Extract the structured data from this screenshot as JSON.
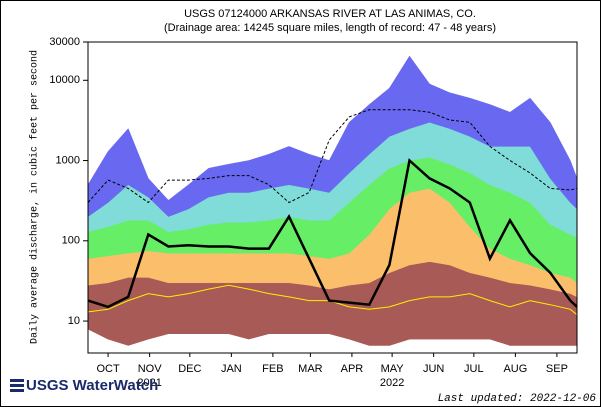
{
  "chart_data": {
    "type": "hydrograph",
    "title": "USGS 07124000 ARKANSAS RIVER AT LAS ANIMAS, CO.",
    "subtitle": "(Drainage area: 14245 square miles, length of record: 47 - 48 years)",
    "y_label": "Daily average discharge, in cubic feet per second",
    "log_y": true,
    "x": [
      0,
      15,
      30,
      45,
      60,
      75,
      90,
      105,
      120,
      135,
      150,
      165,
      180,
      195,
      210,
      225,
      240,
      255,
      270,
      285,
      300,
      315,
      330,
      345,
      360,
      365
    ],
    "xlim": [
      0,
      365
    ],
    "xticks": [
      {
        "value": 15,
        "label": "OCT"
      },
      {
        "value": 46,
        "label": "NOV"
      },
      {
        "value": 76,
        "label": "DEC"
      },
      {
        "value": 107,
        "label": "JAN"
      },
      {
        "value": 138,
        "label": "FEB"
      },
      {
        "value": 166,
        "label": "MAR"
      },
      {
        "value": 197,
        "label": "APR"
      },
      {
        "value": 227,
        "label": "MAY"
      },
      {
        "value": 258,
        "label": "JUN"
      },
      {
        "value": 288,
        "label": "JUL"
      },
      {
        "value": 319,
        "label": "AUG"
      },
      {
        "value": 350,
        "label": "SEP"
      }
    ],
    "year_labels": [
      {
        "value": 46,
        "label": "2021"
      },
      {
        "value": 227,
        "label": "2022"
      }
    ],
    "ylim": [
      4,
      30000
    ],
    "yticks": [
      10,
      100,
      1000,
      10000,
      30000
    ],
    "series": [
      {
        "style": "edge",
        "color": "#a85a56",
        "values": [
          8,
          6,
          5,
          6,
          7,
          7,
          7,
          7,
          6,
          7,
          7,
          7,
          7,
          6,
          5,
          5,
          6,
          6,
          6,
          6,
          6,
          5,
          5,
          5,
          5,
          5
        ]
      },
      {
        "style": "band",
        "color": "#a85a56",
        "values": [
          28,
          30,
          35,
          35,
          30,
          30,
          30,
          30,
          30,
          30,
          30,
          28,
          25,
          28,
          30,
          40,
          50,
          55,
          50,
          40,
          35,
          30,
          28,
          25,
          22,
          20
        ]
      },
      {
        "style": "band",
        "color": "#fbbf6b",
        "values": [
          60,
          65,
          70,
          75,
          70,
          70,
          70,
          70,
          70,
          70,
          70,
          65,
          60,
          70,
          120,
          250,
          400,
          450,
          300,
          150,
          80,
          60,
          50,
          40,
          35,
          30
        ]
      },
      {
        "style": "band",
        "color": "#66ee66",
        "values": [
          130,
          150,
          180,
          180,
          130,
          140,
          160,
          170,
          170,
          180,
          200,
          180,
          180,
          300,
          500,
          800,
          1000,
          1100,
          900,
          700,
          500,
          400,
          300,
          160,
          120,
          110
        ]
      },
      {
        "style": "band",
        "color": "#7fdcd8",
        "values": [
          200,
          300,
          500,
          350,
          200,
          250,
          350,
          400,
          400,
          450,
          500,
          450,
          400,
          700,
          1200,
          2000,
          2500,
          3000,
          2500,
          2000,
          1500,
          1500,
          1500,
          600,
          300,
          250
        ]
      },
      {
        "style": "band",
        "color": "#6868f0",
        "values": [
          500,
          1300,
          2500,
          600,
          320,
          500,
          800,
          900,
          1000,
          1200,
          1500,
          1200,
          1000,
          3000,
          5000,
          8000,
          20000,
          9000,
          7000,
          6000,
          5000,
          4000,
          6000,
          3000,
          1000,
          600
        ]
      },
      {
        "style": "thin",
        "color": "#ffee00",
        "values": [
          13,
          14,
          18,
          22,
          20,
          22,
          25,
          28,
          25,
          22,
          20,
          18,
          18,
          15,
          14,
          15,
          18,
          20,
          20,
          22,
          18,
          15,
          18,
          16,
          14,
          12
        ]
      },
      {
        "style": "dashed",
        "color": "#000000",
        "values": [
          300,
          570,
          450,
          300,
          570,
          570,
          600,
          650,
          650,
          500,
          300,
          400,
          1800,
          3500,
          4300,
          4300,
          4300,
          4000,
          3200,
          3000,
          1500,
          1000,
          700,
          450,
          430,
          450
        ]
      },
      {
        "style": "thick",
        "color": "#000000",
        "values": [
          18,
          15,
          20,
          120,
          85,
          88,
          85,
          85,
          80,
          80,
          200,
          60,
          18,
          17,
          16,
          50,
          1000,
          600,
          450,
          300,
          60,
          180,
          70,
          40,
          18,
          15
        ]
      }
    ],
    "logo": "USGS WaterWatch",
    "updated": "Last updated: 2022-12-06"
  }
}
